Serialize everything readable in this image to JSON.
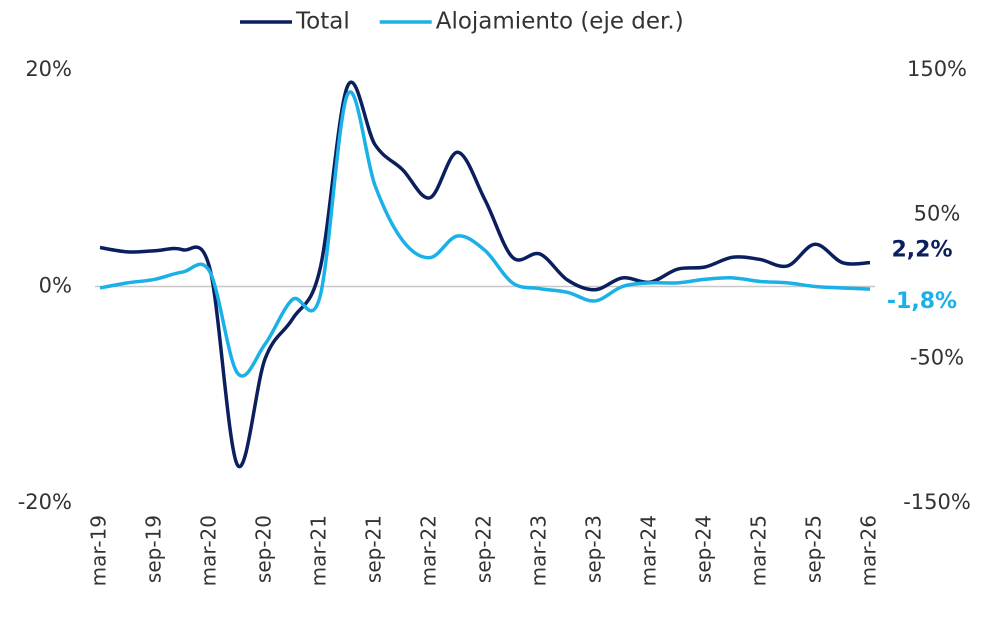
{
  "chart_data": {
    "type": "line",
    "categories": [
      "mar-19",
      null,
      "sep-19",
      null,
      "mar-20",
      null,
      "sep-20",
      null,
      "mar-21",
      null,
      "sep-21",
      null,
      "mar-22",
      null,
      "sep-22",
      null,
      "mar-23",
      null,
      "sep-23",
      null,
      "mar-24",
      null,
      "sep-24",
      null,
      "mar-25",
      null,
      "sep-25",
      null,
      "mar-26"
    ],
    "series": [
      {
        "name": "Total",
        "color": "#0b1f5e",
        "axis": "y",
        "values": [
          3.6,
          3.2,
          3.3,
          3.4,
          1.6,
          -16.5,
          -6.7,
          -3.0,
          1.6,
          18.5,
          13.1,
          10.8,
          8.2,
          12.4,
          8.0,
          2.7,
          3.0,
          0.6,
          -0.3,
          0.8,
          0.4,
          1.6,
          1.8,
          2.7,
          2.5,
          1.9,
          3.9,
          2.2,
          2.2
        ],
        "value_labels": [
          null,
          null,
          null,
          null,
          null,
          null,
          null,
          null,
          null,
          null,
          null,
          null,
          null,
          null,
          null,
          null,
          null,
          null,
          null,
          null,
          null,
          null,
          null,
          null,
          null,
          null,
          null,
          null,
          "2,2%"
        ]
      },
      {
        "name": "Alojamiento (eje der.)",
        "color": "#1ab0e8",
        "axis": "y2",
        "values": [
          -1,
          2.5,
          5,
          10,
          10,
          -60,
          -40,
          -9,
          -7,
          133,
          70,
          32,
          20,
          35,
          25,
          2.5,
          -1.5,
          -4,
          -10,
          0,
          2.5,
          2.5,
          5,
          6,
          3.5,
          2.5,
          0,
          -1,
          -1.8
        ],
        "value_labels": [
          null,
          null,
          null,
          null,
          null,
          null,
          null,
          null,
          null,
          null,
          null,
          null,
          null,
          null,
          null,
          null,
          null,
          null,
          null,
          null,
          null,
          null,
          null,
          null,
          null,
          null,
          null,
          null,
          "-1,8%"
        ]
      }
    ],
    "ylim": [
      -20,
      20
    ],
    "yticks": [
      {
        "value": 20,
        "label": "20%"
      },
      {
        "value": 0,
        "label": "0%"
      },
      {
        "value": -20,
        "label": "-20%"
      }
    ],
    "y2lim": [
      -150,
      150
    ],
    "y2ticks": [
      {
        "value": 150,
        "label": "150%"
      },
      {
        "value": 50,
        "label": "50%"
      },
      {
        "value": -50,
        "label": "-50%"
      },
      {
        "value": -150,
        "label": "-150%"
      }
    ],
    "legend": "top"
  }
}
